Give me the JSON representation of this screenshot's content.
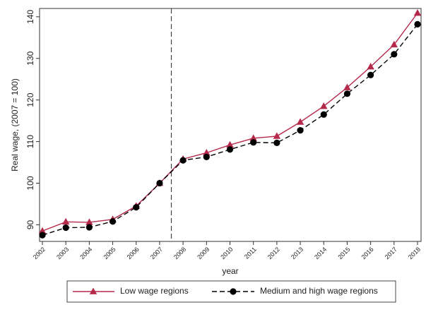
{
  "chart_data": {
    "type": "line",
    "xlabel": "year",
    "ylabel": "Real wage, (2007 = 100)",
    "ylim": [
      86,
      142
    ],
    "y_ticks": [
      90,
      100,
      110,
      120,
      130,
      140
    ],
    "categories": [
      "2002",
      "2003",
      "2004",
      "2005",
      "2006",
      "2007",
      "2008",
      "2009",
      "2010",
      "2011",
      "2012",
      "2013",
      "2014",
      "2015",
      "2016",
      "2017",
      "2018"
    ],
    "reference_line": {
      "between": [
        "2007",
        "2008"
      ],
      "style": "dashed"
    },
    "grid": false,
    "legend_position": "bottom",
    "series": [
      {
        "name": "Low wage regions",
        "color": "#b5294a",
        "marker": "triangle",
        "line_style": "solid",
        "values": [
          88.5,
          90.7,
          90.6,
          91.3,
          94.5,
          100.0,
          105.8,
          107.3,
          109.2,
          110.8,
          111.3,
          114.7,
          118.5,
          123.0,
          128.0,
          133.3,
          140.9
        ]
      },
      {
        "name": "Medium and high wage regions",
        "color": "#000000",
        "marker": "circle",
        "line_style": "dashed",
        "values": [
          87.5,
          89.3,
          89.4,
          90.8,
          94.2,
          100.0,
          105.5,
          106.3,
          108.1,
          109.8,
          109.7,
          112.7,
          116.5,
          121.5,
          126.0,
          131.0,
          138.2
        ]
      }
    ]
  }
}
